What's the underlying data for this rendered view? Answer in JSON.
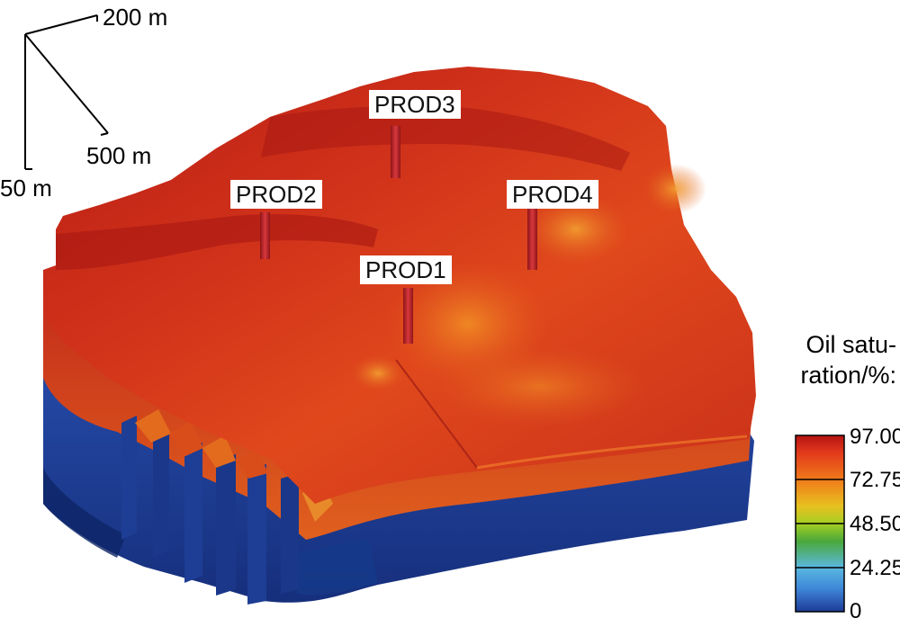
{
  "axes": {
    "x_label": "200 m",
    "y_label": "500 m",
    "z_label": "50 m"
  },
  "wells": [
    {
      "name": "PROD3"
    },
    {
      "name": "PROD2"
    },
    {
      "name": "PROD4"
    },
    {
      "name": "PROD1"
    }
  ],
  "legend": {
    "title_line1": "Oil satu-",
    "title_line2": "ration/%:",
    "ticks": [
      "97.00",
      "72.75",
      "48.50",
      "24.25",
      "0"
    ],
    "colors": {
      "high": "#b51313",
      "upper": "#f07a1a",
      "mid": "#7ec41e",
      "lower": "#5ab8e0",
      "low": "#1d3a96"
    }
  },
  "colors": {
    "oil_zone": "#d4341a",
    "oil_dark": "#a81712",
    "water_zone": "#1f3f98",
    "water_dark": "#102a70",
    "well_pipe": "#c0262a"
  }
}
